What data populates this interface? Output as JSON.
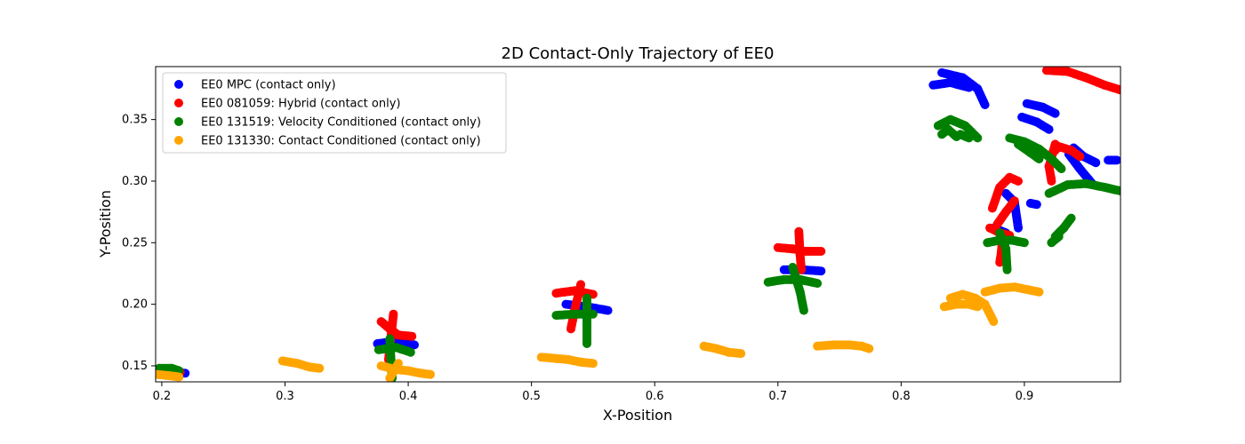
{
  "chart_data": {
    "type": "scatter",
    "title": "2D Contact-Only Trajectory of EE0",
    "xlabel": "X-Position",
    "ylabel": "Y-Position",
    "xlim": [
      0.195,
      0.978
    ],
    "ylim": [
      0.137,
      0.393
    ],
    "xticks": [
      0.2,
      0.3,
      0.4,
      0.5,
      0.6,
      0.7,
      0.8,
      0.9
    ],
    "yticks": [
      0.15,
      0.2,
      0.25,
      0.3,
      0.35
    ],
    "xtick_labels": [
      "0.2",
      "0.3",
      "0.4",
      "0.5",
      "0.6",
      "0.7",
      "0.8",
      "0.9"
    ],
    "ytick_labels": [
      "0.15",
      "0.20",
      "0.25",
      "0.30",
      "0.35"
    ],
    "grid": false,
    "legend_position": "top-left",
    "series": [
      {
        "name": "EE0 MPC (contact only)",
        "color": "#0000ff",
        "strokes": [
          [
            [
              0.198,
              0.146
            ],
            [
              0.21,
              0.145
            ],
            [
              0.219,
              0.144
            ]
          ],
          [
            [
              0.375,
              0.168
            ],
            [
              0.39,
              0.17
            ],
            [
              0.405,
              0.167
            ]
          ],
          [
            [
              0.528,
              0.2
            ],
            [
              0.545,
              0.198
            ],
            [
              0.562,
              0.195
            ]
          ],
          [
            [
              0.705,
              0.228
            ],
            [
              0.72,
              0.228
            ],
            [
              0.735,
              0.227
            ]
          ],
          [
            [
              0.826,
              0.378
            ],
            [
              0.84,
              0.38
            ],
            [
              0.855,
              0.376
            ]
          ],
          [
            [
              0.833,
              0.388
            ],
            [
              0.85,
              0.384
            ],
            [
              0.862,
              0.375
            ],
            [
              0.868,
              0.362
            ]
          ],
          [
            [
              0.902,
              0.363
            ],
            [
              0.915,
              0.36
            ],
            [
              0.925,
              0.355
            ]
          ],
          [
            [
              0.898,
              0.352
            ],
            [
              0.91,
              0.348
            ],
            [
              0.92,
              0.342
            ]
          ],
          [
            [
              0.94,
              0.327
            ],
            [
              0.948,
              0.32
            ],
            [
              0.958,
              0.315
            ]
          ],
          [
            [
              0.936,
              0.322
            ],
            [
              0.945,
              0.31
            ],
            [
              0.955,
              0.298
            ]
          ],
          [
            [
              0.968,
              0.317
            ],
            [
              0.975,
              0.317
            ]
          ],
          [
            [
              0.885,
              0.29
            ],
            [
              0.892,
              0.283
            ],
            [
              0.895,
              0.262
            ]
          ],
          [
            [
              0.905,
              0.282
            ],
            [
              0.91,
              0.281
            ]
          ],
          [
            [
              0.875,
              0.262
            ],
            [
              0.885,
              0.258
            ]
          ]
        ]
      },
      {
        "name": "EE0 081059: Hybrid (contact only)",
        "color": "#ff0000",
        "strokes": [
          [
            [
              0.198,
              0.148
            ],
            [
              0.21,
              0.147
            ],
            [
              0.215,
              0.145
            ]
          ],
          [
            [
              0.378,
              0.186
            ],
            [
              0.385,
              0.18
            ],
            [
              0.392,
              0.175
            ],
            [
              0.403,
              0.174
            ]
          ],
          [
            [
              0.388,
              0.192
            ],
            [
              0.385,
              0.165
            ],
            [
              0.384,
              0.155
            ]
          ],
          [
            [
              0.52,
              0.209
            ],
            [
              0.535,
              0.211
            ],
            [
              0.55,
              0.208
            ]
          ],
          [
            [
              0.54,
              0.216
            ],
            [
              0.535,
              0.195
            ],
            [
              0.532,
              0.18
            ]
          ],
          [
            [
              0.7,
              0.246
            ],
            [
              0.712,
              0.245
            ],
            [
              0.722,
              0.243
            ],
            [
              0.735,
              0.243
            ]
          ],
          [
            [
              0.717,
              0.259
            ],
            [
              0.718,
              0.24
            ],
            [
              0.719,
              0.228
            ]
          ],
          [
            [
              0.918,
              0.39
            ],
            [
              0.935,
              0.389
            ],
            [
              0.95,
              0.384
            ],
            [
              0.965,
              0.378
            ],
            [
              0.978,
              0.374
            ]
          ],
          [
            [
              0.92,
              0.32
            ],
            [
              0.928,
              0.328
            ],
            [
              0.938,
              0.325
            ],
            [
              0.945,
              0.32
            ]
          ],
          [
            [
              0.925,
              0.33
            ],
            [
              0.92,
              0.312
            ],
            [
              0.922,
              0.3
            ]
          ],
          [
            [
              0.874,
              0.278
            ],
            [
              0.88,
              0.295
            ],
            [
              0.888,
              0.303
            ],
            [
              0.895,
              0.3
            ]
          ],
          [
            [
              0.878,
              0.265
            ],
            [
              0.885,
              0.275
            ],
            [
              0.892,
              0.284
            ]
          ],
          [
            [
              0.872,
              0.262
            ],
            [
              0.88,
              0.258
            ],
            [
              0.888,
              0.256
            ]
          ],
          [
            [
              0.882,
              0.25
            ],
            [
              0.881,
              0.24
            ],
            [
              0.88,
              0.234
            ]
          ]
        ]
      },
      {
        "name": "EE0 131519: Velocity Conditioned (contact only)",
        "color": "#008000",
        "strokes": [
          [
            [
              0.198,
              0.148
            ],
            [
              0.208,
              0.148
            ],
            [
              0.214,
              0.146
            ]
          ],
          [
            [
              0.376,
              0.163
            ],
            [
              0.39,
              0.165
            ],
            [
              0.402,
              0.161
            ]
          ],
          [
            [
              0.385,
              0.172
            ],
            [
              0.386,
              0.155
            ],
            [
              0.387,
              0.14
            ]
          ],
          [
            [
              0.52,
              0.191
            ],
            [
              0.535,
              0.192
            ],
            [
              0.55,
              0.192
            ]
          ],
          [
            [
              0.545,
              0.205
            ],
            [
              0.545,
              0.185
            ],
            [
              0.545,
              0.168
            ]
          ],
          [
            [
              0.692,
              0.218
            ],
            [
              0.705,
              0.22
            ],
            [
              0.718,
              0.22
            ],
            [
              0.732,
              0.217
            ]
          ],
          [
            [
              0.712,
              0.23
            ],
            [
              0.718,
              0.21
            ],
            [
              0.721,
              0.195
            ]
          ],
          [
            [
              0.83,
              0.345
            ],
            [
              0.84,
              0.35
            ],
            [
              0.852,
              0.345
            ],
            [
              0.862,
              0.335
            ]
          ],
          [
            [
              0.833,
              0.338
            ],
            [
              0.838,
              0.342
            ],
            [
              0.845,
              0.336
            ]
          ],
          [
            [
              0.848,
              0.338
            ],
            [
              0.855,
              0.335
            ]
          ],
          [
            [
              0.888,
              0.335
            ],
            [
              0.9,
              0.332
            ],
            [
              0.912,
              0.326
            ],
            [
              0.922,
              0.318
            ],
            [
              0.93,
              0.31
            ]
          ],
          [
            [
              0.895,
              0.33
            ],
            [
              0.905,
              0.323
            ],
            [
              0.912,
              0.318
            ]
          ],
          [
            [
              0.92,
              0.29
            ],
            [
              0.935,
              0.297
            ],
            [
              0.95,
              0.298
            ],
            [
              0.965,
              0.295
            ],
            [
              0.978,
              0.292
            ]
          ],
          [
            [
              0.925,
              0.255
            ],
            [
              0.932,
              0.262
            ],
            [
              0.938,
              0.27
            ]
          ],
          [
            [
              0.922,
              0.25
            ],
            [
              0.928,
              0.255
            ]
          ],
          [
            [
              0.87,
              0.25
            ],
            [
              0.88,
              0.252
            ],
            [
              0.89,
              0.252
            ],
            [
              0.9,
              0.25
            ]
          ],
          [
            [
              0.88,
              0.258
            ],
            [
              0.885,
              0.245
            ],
            [
              0.886,
              0.228
            ]
          ]
        ]
      },
      {
        "name": "EE0 131330: Contact Conditioned (contact only)",
        "color": "#ffa500",
        "strokes": [
          [
            [
              0.196,
              0.143
            ],
            [
              0.206,
              0.142
            ],
            [
              0.214,
              0.141
            ]
          ],
          [
            [
              0.298,
              0.154
            ],
            [
              0.31,
              0.152
            ],
            [
              0.32,
              0.149
            ],
            [
              0.328,
              0.148
            ]
          ],
          [
            [
              0.378,
              0.15
            ],
            [
              0.39,
              0.147
            ],
            [
              0.4,
              0.146
            ],
            [
              0.41,
              0.144
            ],
            [
              0.418,
              0.143
            ]
          ],
          [
            [
              0.385,
              0.14
            ],
            [
              0.392,
              0.152
            ]
          ],
          [
            [
              0.508,
              0.157
            ],
            [
              0.52,
              0.156
            ],
            [
              0.53,
              0.155
            ],
            [
              0.54,
              0.153
            ],
            [
              0.55,
              0.152
            ]
          ],
          [
            [
              0.64,
              0.166
            ],
            [
              0.65,
              0.164
            ],
            [
              0.66,
              0.161
            ],
            [
              0.67,
              0.16
            ]
          ],
          [
            [
              0.732,
              0.166
            ],
            [
              0.745,
              0.167
            ],
            [
              0.758,
              0.167
            ],
            [
              0.768,
              0.166
            ],
            [
              0.774,
              0.164
            ]
          ],
          [
            [
              0.835,
              0.198
            ],
            [
              0.845,
              0.2
            ],
            [
              0.855,
              0.2
            ],
            [
              0.862,
              0.198
            ]
          ],
          [
            [
              0.84,
              0.205
            ],
            [
              0.85,
              0.208
            ],
            [
              0.86,
              0.205
            ],
            [
              0.868,
              0.2
            ],
            [
              0.875,
              0.186
            ]
          ],
          [
            [
              0.868,
              0.21
            ],
            [
              0.88,
              0.213
            ],
            [
              0.892,
              0.214
            ],
            [
              0.902,
              0.212
            ],
            [
              0.912,
              0.21
            ]
          ]
        ]
      }
    ]
  }
}
